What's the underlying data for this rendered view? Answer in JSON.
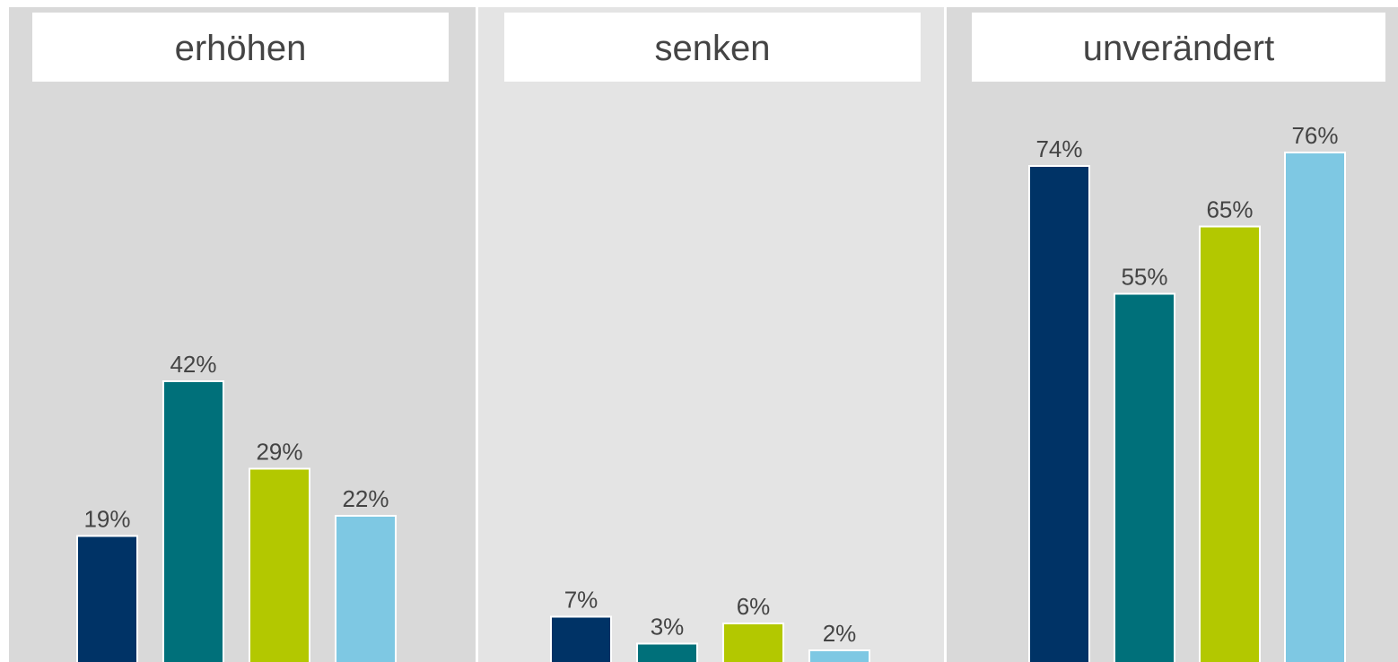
{
  "chart_data": [
    {
      "type": "bar",
      "title": "erhöhen",
      "values": [
        19,
        42,
        29,
        22
      ],
      "value_labels": [
        "19%",
        "42%",
        "29%",
        "22%"
      ],
      "colors": [
        "#003366",
        "#00707a",
        "#b3c800",
        "#7ec8e3"
      ]
    },
    {
      "type": "bar",
      "title": "senken",
      "values": [
        7,
        3,
        6,
        2
      ],
      "value_labels": [
        "7%",
        "3%",
        "6%",
        "2%"
      ],
      "colors": [
        "#003366",
        "#00707a",
        "#b3c800",
        "#7ec8e3"
      ]
    },
    {
      "type": "bar",
      "title": "unverändert",
      "values": [
        74,
        55,
        65,
        76
      ],
      "value_labels": [
        "74%",
        "55%",
        "65%",
        "76%"
      ],
      "colors": [
        "#003366",
        "#00707a",
        "#b3c800",
        "#7ec8e3"
      ]
    }
  ]
}
